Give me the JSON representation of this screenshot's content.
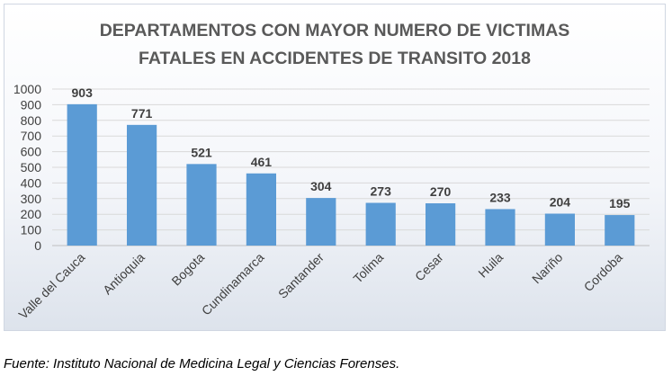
{
  "chart_data": {
    "type": "bar",
    "title_lines": [
      "DEPARTAMENTOS CON MAYOR NUMERO DE VICTIMAS",
      "FATALES EN ACCIDENTES DE TRANSITO 2018"
    ],
    "categories": [
      "Valle del Cauca",
      "Antioquia",
      "Bogota",
      "Cundinamarca",
      "Santander",
      "Tolima",
      "Cesar",
      "Huila",
      "Nariño",
      "Cordoba"
    ],
    "values": [
      903,
      771,
      521,
      461,
      304,
      273,
      270,
      233,
      204,
      195
    ],
    "ylim": [
      0,
      1000
    ],
    "yticks": [
      0,
      100,
      200,
      300,
      400,
      500,
      600,
      700,
      800,
      900,
      1000
    ],
    "grid": true,
    "bar_color": "#5b9bd5",
    "data_labels": true
  },
  "source": "Fuente: Instituto Nacional de Medicina Legal y Ciencias Forenses."
}
